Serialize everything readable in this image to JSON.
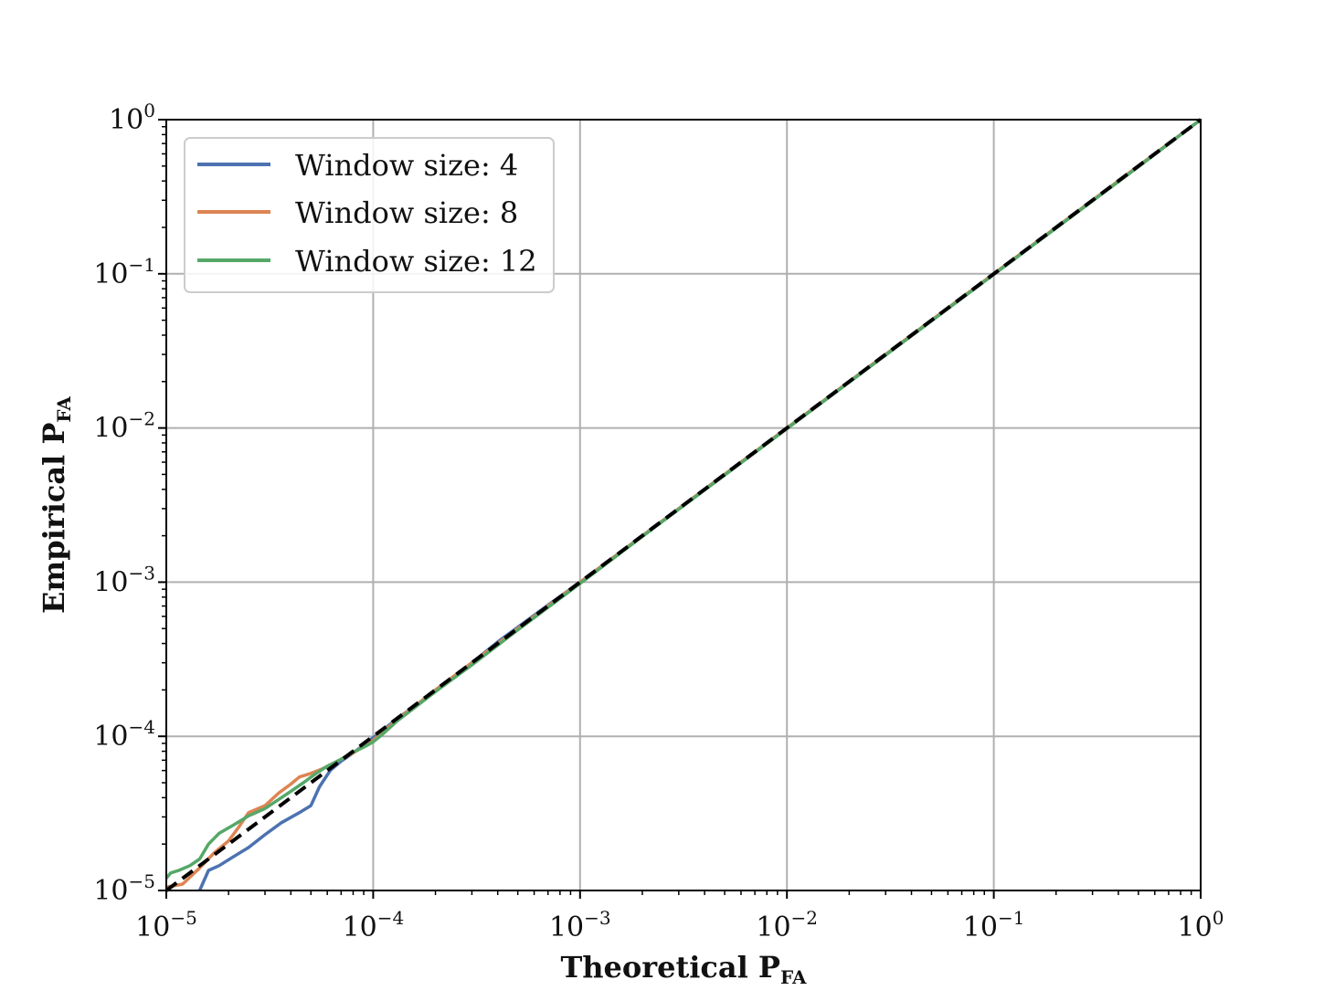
{
  "chart_data": {
    "type": "line",
    "xlabel": "Theoretical P",
    "xlabel_sub": "FA",
    "ylabel": "Empirical P",
    "ylabel_sub": "FA",
    "xscale": "log",
    "yscale": "log",
    "xlim": [
      1e-05,
      1
    ],
    "ylim": [
      1e-05,
      1
    ],
    "grid": true,
    "legend_position": "upper left",
    "x_ticks": [
      {
        "value": 1e-05,
        "base": "10",
        "exp": "−5"
      },
      {
        "value": 0.0001,
        "base": "10",
        "exp": "−4"
      },
      {
        "value": 0.001,
        "base": "10",
        "exp": "−3"
      },
      {
        "value": 0.01,
        "base": "10",
        "exp": "−2"
      },
      {
        "value": 0.1,
        "base": "10",
        "exp": "−1"
      },
      {
        "value": 1,
        "base": "10",
        "exp": "0"
      }
    ],
    "y_ticks": [
      {
        "value": 1e-05,
        "base": "10",
        "exp": "−5"
      },
      {
        "value": 0.0001,
        "base": "10",
        "exp": "−4"
      },
      {
        "value": 0.001,
        "base": "10",
        "exp": "−3"
      },
      {
        "value": 0.01,
        "base": "10",
        "exp": "−2"
      },
      {
        "value": 0.1,
        "base": "10",
        "exp": "−1"
      },
      {
        "value": 1,
        "base": "10",
        "exp": "0"
      }
    ],
    "series": [
      {
        "name": "Window size: 4",
        "color": "#4c72b0",
        "style": "solid",
        "x": [
          1.45e-05,
          1.6e-05,
          1.8e-05,
          2.1e-05,
          2.5e-05,
          3e-05,
          3.6e-05,
          4.4e-05,
          5e-05,
          5.5e-05,
          6.2e-05,
          7e-05,
          8e-05,
          9e-05,
          0.0001,
          0.00011,
          0.00013,
          0.00016,
          0.0002,
          0.0003,
          0.0004,
          0.0005,
          0.0007,
          0.001,
          0.002,
          0.005,
          0.01,
          0.02,
          0.05,
          0.1,
          0.2,
          0.5,
          1
        ],
        "y": [
          1e-05,
          1.35e-05,
          1.45e-05,
          1.65e-05,
          1.9e-05,
          2.3e-05,
          2.75e-05,
          3.2e-05,
          3.55e-05,
          4.7e-05,
          6e-05,
          6.9e-05,
          7.8e-05,
          8.8e-05,
          9.8e-05,
          0.000108,
          0.00013,
          0.000158,
          0.0002,
          0.0003,
          0.00041,
          0.00051,
          0.00071,
          0.001,
          0.002,
          0.005,
          0.01,
          0.02,
          0.05,
          0.1,
          0.2,
          0.5,
          1
        ]
      },
      {
        "name": "Window size: 8",
        "color": "#dd8452",
        "style": "solid",
        "x": [
          1e-05,
          1.2e-05,
          1.45e-05,
          1.7e-05,
          2e-05,
          2.25e-05,
          2.5e-05,
          3e-05,
          3.5e-05,
          4e-05,
          4.4e-05,
          5e-05,
          5.6e-05,
          6.3e-05,
          7e-05,
          8e-05,
          9e-05,
          0.0001,
          0.00011,
          0.00013,
          0.00016,
          0.0002,
          0.0003,
          0.0005,
          0.001,
          0.002,
          0.005,
          0.01,
          0.02,
          0.05,
          0.1,
          0.2,
          0.5,
          1
        ],
        "y": [
          1.05e-05,
          1.1e-05,
          1.4e-05,
          1.75e-05,
          2.1e-05,
          2.6e-05,
          3.2e-05,
          3.55e-05,
          4.3e-05,
          4.9e-05,
          5.45e-05,
          5.75e-05,
          6.1e-05,
          6.6e-05,
          7.1e-05,
          7.8e-05,
          8.6e-05,
          9.4e-05,
          0.000105,
          0.000128,
          0.000158,
          0.0002,
          0.0003,
          0.0005,
          0.001,
          0.002,
          0.005,
          0.01,
          0.02,
          0.05,
          0.1,
          0.2,
          0.5,
          1
        ]
      },
      {
        "name": "Window size: 12",
        "color": "#55a868",
        "style": "solid",
        "x": [
          1e-05,
          1.05e-05,
          1.15e-05,
          1.3e-05,
          1.45e-05,
          1.6e-05,
          1.8e-05,
          2.1e-05,
          2.5e-05,
          3e-05,
          3.5e-05,
          4e-05,
          4.6e-05,
          5.3e-05,
          6e-05,
          7e-05,
          8e-05,
          9e-05,
          0.0001,
          0.00011,
          0.00013,
          0.00016,
          0.0002,
          0.0003,
          0.0005,
          0.001,
          0.002,
          0.005,
          0.01,
          0.02,
          0.05,
          0.1,
          0.2,
          0.5,
          1
        ],
        "y": [
          1.2e-05,
          1.3e-05,
          1.35e-05,
          1.45e-05,
          1.6e-05,
          2e-05,
          2.35e-05,
          2.65e-05,
          3.05e-05,
          3.4e-05,
          3.9e-05,
          4.4e-05,
          5e-05,
          5.75e-05,
          6.4e-05,
          7.1e-05,
          7.9e-05,
          8.5e-05,
          9.2e-05,
          0.000102,
          0.000125,
          0.000155,
          0.000195,
          0.00029,
          0.00049,
          0.00098,
          0.00198,
          0.00495,
          0.0099,
          0.0198,
          0.0495,
          0.099,
          0.198,
          0.495,
          1
        ]
      },
      {
        "name": "",
        "color": "#000000",
        "style": "dashed",
        "x": [
          1e-05,
          1
        ],
        "y": [
          1e-05,
          1
        ]
      }
    ]
  }
}
